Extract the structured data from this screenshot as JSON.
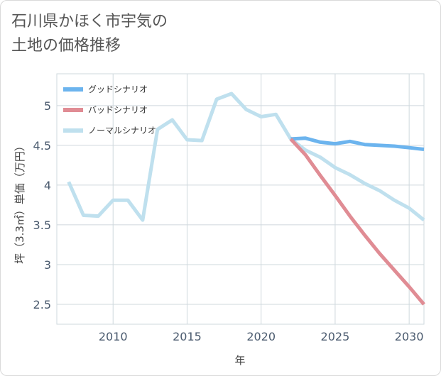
{
  "page": {
    "title_line1": "石川県かほく市宇気の",
    "title_line2": "土地の価格推移"
  },
  "chart_data": {
    "type": "line",
    "title": "石川県かほく市宇気の土地の価格推移",
    "xlabel": "年",
    "ylabel": "坪（3.3㎡）単価（万円）",
    "xlim": [
      2006.2,
      2031
    ],
    "ylim": [
      2.25,
      5.4
    ],
    "x_ticks": [
      2010,
      2015,
      2020,
      2025,
      2030
    ],
    "y_ticks": [
      2.5,
      3,
      3.5,
      4,
      4.5,
      5
    ],
    "grid": true,
    "legend_position": "top-left",
    "series": [
      {
        "name": "グッドシナリオ",
        "color": "#6cb4ee",
        "points": [
          [
            2022,
            4.58
          ],
          [
            2023,
            4.59
          ],
          [
            2024,
            4.54
          ],
          [
            2025,
            4.52
          ],
          [
            2026,
            4.55
          ],
          [
            2027,
            4.51
          ],
          [
            2028,
            4.5
          ],
          [
            2029,
            4.49
          ],
          [
            2030,
            4.47
          ],
          [
            2031,
            4.45
          ]
        ]
      },
      {
        "name": "バッドシナリオ",
        "color": "#e08c94",
        "points": [
          [
            2022,
            4.58
          ],
          [
            2023,
            4.38
          ],
          [
            2024,
            4.12
          ],
          [
            2025,
            3.87
          ],
          [
            2026,
            3.61
          ],
          [
            2027,
            3.37
          ],
          [
            2028,
            3.14
          ],
          [
            2029,
            2.93
          ],
          [
            2030,
            2.72
          ],
          [
            2031,
            2.5
          ]
        ]
      },
      {
        "name": "ノーマルシナリオ",
        "color": "#bfe0ee",
        "points": [
          [
            2007,
            4.04
          ],
          [
            2008,
            3.62
          ],
          [
            2009,
            3.61
          ],
          [
            2010,
            3.81
          ],
          [
            2011,
            3.81
          ],
          [
            2012,
            3.56
          ],
          [
            2013,
            4.7
          ],
          [
            2014,
            4.82
          ],
          [
            2015,
            4.57
          ],
          [
            2016,
            4.56
          ],
          [
            2017,
            5.08
          ],
          [
            2018,
            5.15
          ],
          [
            2019,
            4.95
          ],
          [
            2020,
            4.86
          ],
          [
            2021,
            4.89
          ],
          [
            2022,
            4.58
          ],
          [
            2023,
            4.44
          ],
          [
            2024,
            4.35
          ],
          [
            2025,
            4.22
          ],
          [
            2026,
            4.13
          ],
          [
            2027,
            4.02
          ],
          [
            2028,
            3.93
          ],
          [
            2029,
            3.81
          ],
          [
            2030,
            3.71
          ],
          [
            2031,
            3.56
          ]
        ]
      }
    ]
  }
}
